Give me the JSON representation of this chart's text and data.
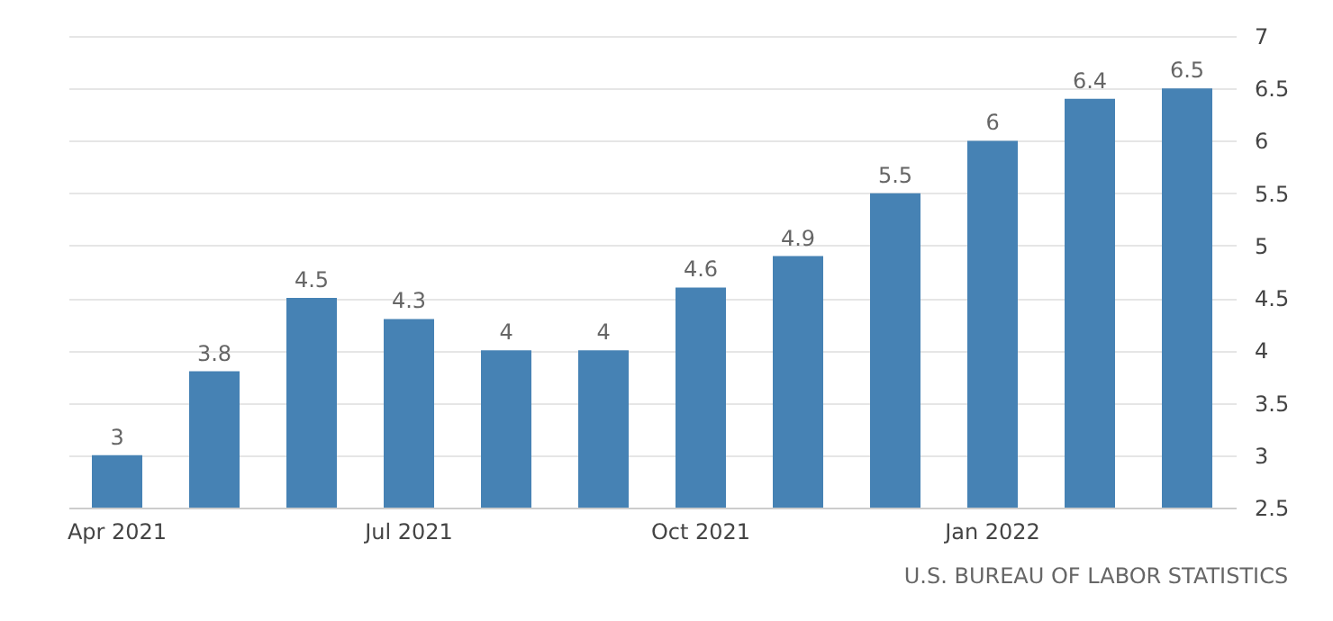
{
  "chart_data": {
    "type": "bar",
    "categories": [
      "Apr 2021",
      null,
      null,
      "Jul 2021",
      null,
      null,
      "Oct 2021",
      null,
      null,
      "Jan 2022",
      null,
      null
    ],
    "values": [
      3,
      3.8,
      4.5,
      4.3,
      4,
      4,
      4.6,
      4.9,
      5.5,
      6,
      6.4,
      6.5
    ],
    "color": "#4682b4",
    "ylim": [
      2.5,
      7
    ],
    "yticks": [
      2.5,
      3,
      3.5,
      4,
      4.5,
      5,
      5.5,
      6,
      6.5,
      7
    ],
    "grid": "y",
    "data_labels": true,
    "annotations": [
      "U.S. BUREAU OF LABOR STATISTICS"
    ]
  }
}
